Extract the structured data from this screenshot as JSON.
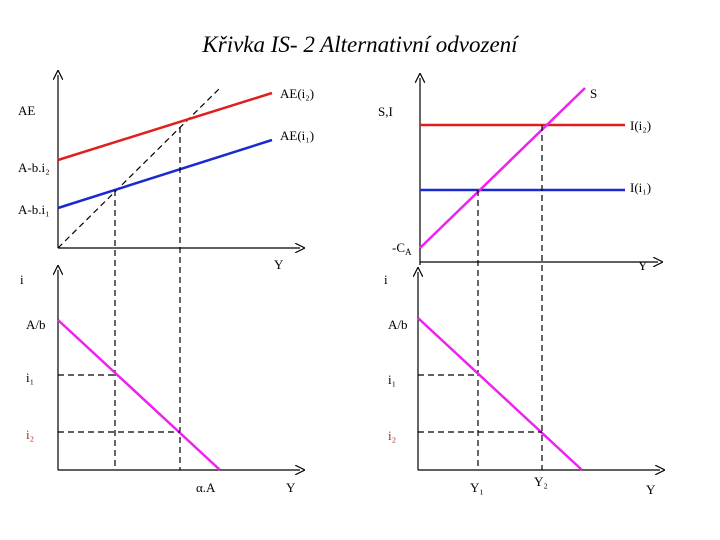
{
  "title": "Křivka IS- 2 Alternativní odvození",
  "panels": [
    {
      "labels": [
        "AE",
        "A-b.i₂",
        "A-b.i₁",
        "AE(i₂)",
        "AE(i₁)",
        "Y"
      ]
    },
    {
      "labels": [
        "S,I",
        "S",
        "I(i₂)",
        "I(i₁)",
        "Y"
      ],
      "intercept_label": {
        "main": "-C",
        "sub": "A"
      }
    },
    {
      "labels": [
        "i",
        "A/b",
        "i₁",
        "i₂",
        "α.A",
        "Y"
      ]
    },
    {
      "labels": [
        "i",
        "A/b",
        "i₁",
        "i₂",
        "Y₁",
        "Y₂",
        "Y"
      ]
    }
  ]
}
